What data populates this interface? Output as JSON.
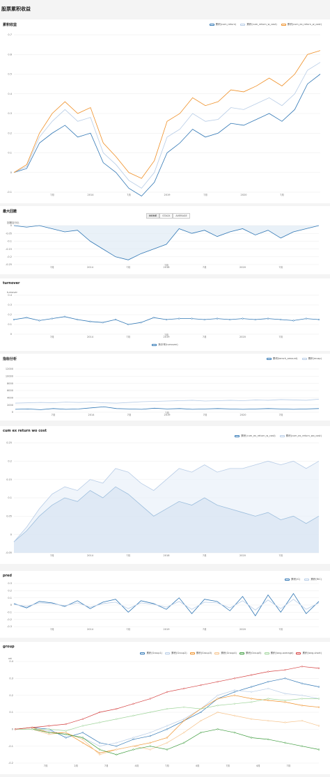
{
  "page": {
    "title": "股票累积收益"
  },
  "colors": {
    "blue": "#2f76b4",
    "lightblue": "#b7cce6",
    "orange": "#ef8f26",
    "green": "#3a9a3a",
    "red": "#d43d3d",
    "lightgreen": "#9fd49a",
    "lightorange": "#f6c289"
  },
  "panels": {
    "cumret": {
      "title": "累积收益",
      "legend": [
        "累积(cum_return)",
        "累积(cum_return_w_cost)",
        "累积(cum_ex_return_w_cost)"
      ],
      "y_ticks": [
        "0.7",
        "0.6",
        "0.5",
        "0.4",
        "0.3",
        "0.2",
        "0.1",
        "0",
        "-0.1"
      ],
      "x_ticks": [
        "7月",
        "2014",
        "7月",
        "2019",
        "7月",
        "2020",
        "7月"
      ]
    },
    "drawdown": {
      "title": "最大回撤",
      "buttons": [
        "NONE",
        "STACK",
        "AVERAGE"
      ],
      "y_label": "回撤百分比",
      "y_ticks": [
        "0",
        "-0.05",
        "-0.1",
        "-0.15",
        "-0.2",
        "-0.25"
      ],
      "x_ticks": [
        "7月",
        "2014",
        "7月",
        "2018",
        "7月",
        "2020",
        "7月"
      ],
      "annotation": "7月"
    },
    "turnover": {
      "title": "turnover",
      "y_label": "turnover",
      "y_ticks": [
        "0.4",
        "0.3",
        "0.2",
        "0.1",
        "0"
      ],
      "x_ticks": [
        "7月",
        "2014",
        "7月",
        "2019",
        "7月",
        "2020",
        "7月"
      ],
      "annotation": "7月",
      "legend": [
        "换手率(turnover)"
      ]
    },
    "bench": {
      "title": "指标分析",
      "legend": [
        "累积(bench_amount)",
        "累积(mcap)"
      ],
      "y_ticks": [
        "12000",
        "10000",
        "8000",
        "6000",
        "4000",
        "2000",
        "0"
      ],
      "x_ticks": [
        "7月",
        "2014",
        "7月",
        "2019",
        "7月",
        "2020",
        "7月"
      ],
      "annotation": "7月"
    },
    "cumex": {
      "title": "cum ex return wo cost",
      "legend": [
        "累积(cum_ex_return_w_cost)",
        "累积(cum_ex_return_wo_cost)"
      ],
      "y_ticks": [
        "0.25",
        "0.2",
        "0.15",
        "0.1",
        "0.05",
        "0",
        "-0.05"
      ],
      "x_ticks": [
        "7月",
        "2014",
        "7月",
        "2018",
        "7月",
        "2020",
        "7月"
      ]
    },
    "pred": {
      "title": "pred",
      "legend": [
        "累积(IC)",
        "累积(RIC)"
      ],
      "y_ticks": [
        "0.3",
        "0.2",
        "0.1",
        "0",
        "-0.1",
        "-0.2",
        "-0.3"
      ],
      "x_ticks": [
        "7月",
        "2014",
        "7月",
        "2019",
        "7月",
        "2020",
        "7月"
      ]
    },
    "group": {
      "title": "group",
      "legend": [
        "累积(Group1)",
        "累积(Group2)",
        "累积(Group3)",
        "累积(Group4)",
        "累积(Group5)",
        "累积(long-average)",
        "累积(long-short)"
      ],
      "y_label": "ret",
      "y_ticks": [
        "0.4",
        "0.3",
        "0.2",
        "0.1",
        "0",
        "-0.1",
        "-0.2"
      ],
      "x_ticks": [
        "7月",
        "2月",
        "7月",
        "4月",
        "7月",
        "4月",
        "7月",
        "4月",
        "7月"
      ]
    }
  },
  "chart_data": [
    {
      "type": "line",
      "title": "累积收益",
      "ylim": [
        -0.1,
        0.7
      ],
      "series": [
        {
          "name": "累积(cum_return)",
          "values": [
            0,
            0.02,
            0.15,
            0.2,
            0.24,
            0.18,
            0.2,
            0.05,
            0.0,
            -0.08,
            -0.12,
            -0.05,
            0.1,
            0.15,
            0.22,
            0.18,
            0.2,
            0.25,
            0.24,
            0.27,
            0.3,
            0.26,
            0.32,
            0.45,
            0.5
          ]
        },
        {
          "name": "累积(cum_return_w_cost)",
          "values": [
            0,
            0.03,
            0.18,
            0.26,
            0.32,
            0.26,
            0.28,
            0.1,
            0.04,
            -0.04,
            -0.08,
            0.0,
            0.18,
            0.22,
            0.3,
            0.26,
            0.27,
            0.33,
            0.32,
            0.35,
            0.38,
            0.34,
            0.4,
            0.52,
            0.56
          ]
        },
        {
          "name": "累积(cum_ex_return_w_cost)",
          "values": [
            0,
            0.04,
            0.2,
            0.3,
            0.36,
            0.3,
            0.33,
            0.15,
            0.08,
            0.0,
            -0.03,
            0.06,
            0.26,
            0.3,
            0.38,
            0.34,
            0.36,
            0.42,
            0.41,
            0.44,
            0.48,
            0.44,
            0.5,
            0.6,
            0.62
          ]
        }
      ]
    },
    {
      "type": "area",
      "title": "最大回撤",
      "ylim": [
        -0.25,
        0
      ],
      "series": [
        {
          "name": "",
          "values": [
            0,
            -0.01,
            0,
            -0.02,
            -0.04,
            -0.03,
            -0.1,
            -0.15,
            -0.2,
            -0.22,
            -0.18,
            -0.15,
            -0.12,
            -0.02,
            -0.05,
            -0.03,
            -0.07,
            -0.04,
            -0.02,
            -0.06,
            -0.03,
            -0.08,
            -0.04,
            -0.02,
            0
          ]
        }
      ]
    },
    {
      "type": "line",
      "title": "turnover",
      "ylim": [
        0,
        0.4
      ],
      "series": [
        {
          "name": "换手率(turnover)",
          "values": [
            0.15,
            0.17,
            0.14,
            0.16,
            0.18,
            0.15,
            0.13,
            0.12,
            0.15,
            0.1,
            0.12,
            0.17,
            0.15,
            0.16,
            0.16,
            0.15,
            0.16,
            0.15,
            0.16,
            0.15,
            0.16,
            0.15,
            0.14,
            0.16,
            0.15
          ]
        }
      ]
    },
    {
      "type": "line",
      "title": "指标分析",
      "ylim": [
        0,
        12000
      ],
      "series": [
        {
          "name": "累积(bench_amount)",
          "values": [
            800,
            900,
            700,
            1000,
            800,
            900,
            1200,
            1500,
            1000,
            900,
            800,
            1100,
            900,
            1000,
            800,
            900,
            1000,
            900,
            800,
            900,
            1000,
            900,
            800,
            900,
            1000
          ]
        },
        {
          "name": "累积(mcap)",
          "values": [
            2500,
            2600,
            2700,
            2600,
            2800,
            2700,
            2800,
            2600,
            2500,
            2700,
            2900,
            3000,
            3100,
            3200,
            3300,
            3100,
            3200,
            3300,
            3200,
            3400,
            3300,
            3500,
            3400,
            3300,
            3600
          ]
        }
      ]
    },
    {
      "type": "area",
      "title": "cum ex return wo cost",
      "ylim": [
        -0.05,
        0.25
      ],
      "series": [
        {
          "name": "累积(cum_ex_return_w_cost)",
          "values": [
            -0.02,
            0.01,
            0.05,
            0.08,
            0.1,
            0.09,
            0.12,
            0.1,
            0.13,
            0.11,
            0.08,
            0.05,
            0.07,
            0.09,
            0.08,
            0.1,
            0.08,
            0.07,
            0.06,
            0.05,
            0.06,
            0.04,
            0.05,
            0.03,
            0.05
          ]
        },
        {
          "name": "累积(cum_ex_return_wo_cost)",
          "values": [
            -0.02,
            0.02,
            0.07,
            0.11,
            0.13,
            0.12,
            0.15,
            0.14,
            0.18,
            0.17,
            0.14,
            0.12,
            0.15,
            0.18,
            0.17,
            0.19,
            0.17,
            0.18,
            0.18,
            0.19,
            0.2,
            0.19,
            0.2,
            0.18,
            0.2
          ]
        }
      ]
    },
    {
      "type": "line",
      "title": "pred",
      "ylim": [
        -0.3,
        0.3
      ],
      "series": [
        {
          "name": "累积(IC)",
          "values": [
            0.02,
            -0.04,
            0.05,
            0.03,
            -0.02,
            0.06,
            -0.05,
            0.04,
            0.08,
            -0.1,
            0.06,
            0.02,
            -0.06,
            0.1,
            -0.12,
            0.08,
            0.05,
            -0.08,
            0.12,
            -0.15,
            0.14,
            -0.1,
            0.16,
            -0.12,
            0.05
          ]
        },
        {
          "name": "累积(RIC)",
          "values": [
            0.01,
            -0.02,
            0.03,
            0.02,
            -0.01,
            0.03,
            -0.03,
            0.02,
            0.04,
            -0.05,
            0.03,
            0.01,
            -0.03,
            0.05,
            -0.06,
            0.04,
            0.03,
            -0.04,
            0.06,
            -0.07,
            0.07,
            -0.05,
            0.08,
            -0.06,
            0.03
          ]
        }
      ]
    },
    {
      "type": "line",
      "title": "group",
      "ylim": [
        -0.2,
        0.4
      ],
      "series": [
        {
          "name": "累积(Group1)",
          "values": [
            0,
            0.01,
            0.0,
            -0.05,
            -0.02,
            -0.08,
            -0.1,
            -0.06,
            -0.04,
            0.0,
            0.05,
            0.1,
            0.18,
            0.22,
            0.25,
            0.28,
            0.3,
            0.27,
            0.25
          ]
        },
        {
          "name": "累积(Group2)",
          "values": [
            0,
            0.0,
            -0.01,
            -0.03,
            -0.05,
            -0.1,
            -0.08,
            -0.05,
            -0.02,
            0.02,
            0.06,
            0.12,
            0.2,
            0.23,
            0.22,
            0.24,
            0.21,
            0.2,
            0.18
          ]
        },
        {
          "name": "累积(Group3)",
          "values": [
            0,
            0.01,
            -0.02,
            -0.02,
            -0.08,
            -0.14,
            -0.12,
            -0.1,
            -0.08,
            -0.05,
            0.05,
            0.12,
            0.18,
            0.2,
            0.18,
            0.17,
            0.16,
            0.14,
            0.13
          ]
        },
        {
          "name": "累积(Group4)",
          "values": [
            0,
            0.0,
            -0.03,
            -0.02,
            -0.06,
            -0.15,
            -0.12,
            -0.1,
            -0.12,
            -0.08,
            -0.02,
            0.05,
            0.1,
            0.08,
            0.06,
            0.05,
            0.04,
            0.05,
            0.02
          ]
        },
        {
          "name": "累积(Group5)",
          "values": [
            0,
            0.0,
            -0.02,
            -0.03,
            -0.05,
            -0.12,
            -0.15,
            -0.12,
            -0.1,
            -0.12,
            -0.08,
            -0.02,
            0.0,
            -0.02,
            -0.05,
            -0.06,
            -0.08,
            -0.1,
            -0.12
          ]
        },
        {
          "name": "累积(long-average)",
          "values": [
            0,
            0.0,
            0.0,
            -0.01,
            0.02,
            0.04,
            0.06,
            0.08,
            0.1,
            0.12,
            0.13,
            0.12,
            0.14,
            0.15,
            0.16,
            0.18,
            0.17,
            0.18,
            0.18
          ]
        },
        {
          "name": "累积(long-short)",
          "values": [
            0,
            0.01,
            0.02,
            0.03,
            0.06,
            0.1,
            0.12,
            0.15,
            0.18,
            0.22,
            0.24,
            0.26,
            0.28,
            0.3,
            0.32,
            0.34,
            0.35,
            0.37,
            0.36
          ]
        }
      ]
    }
  ]
}
